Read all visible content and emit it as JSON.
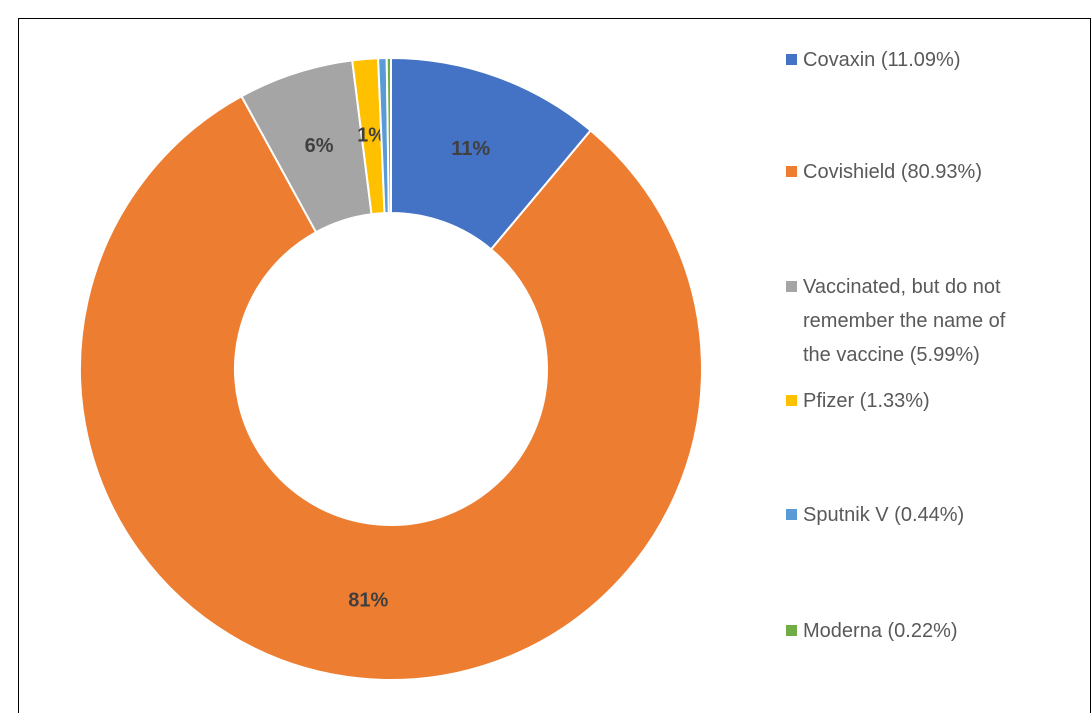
{
  "chart_data": {
    "type": "donut",
    "categories": [
      "Covaxin (11.09%)",
      "Covishield (80.93%)",
      "Vaccinated, but do not remember the name of the vaccine (5.99%)",
      "Pfizer (1.33%)",
      "Sputnik V (0.44%)",
      "Moderna (0.22%)"
    ],
    "values": [
      11.09,
      80.93,
      5.99,
      1.33,
      0.44,
      0.22
    ],
    "value_labels": [
      "11%",
      "81%",
      "6%",
      "1%",
      null,
      null
    ],
    "colors": [
      "#4472c4",
      "#ed7d31",
      "#a5a5a5",
      "#ffc000",
      "#5b9bd5",
      "#70ad47"
    ],
    "legend": "right"
  }
}
